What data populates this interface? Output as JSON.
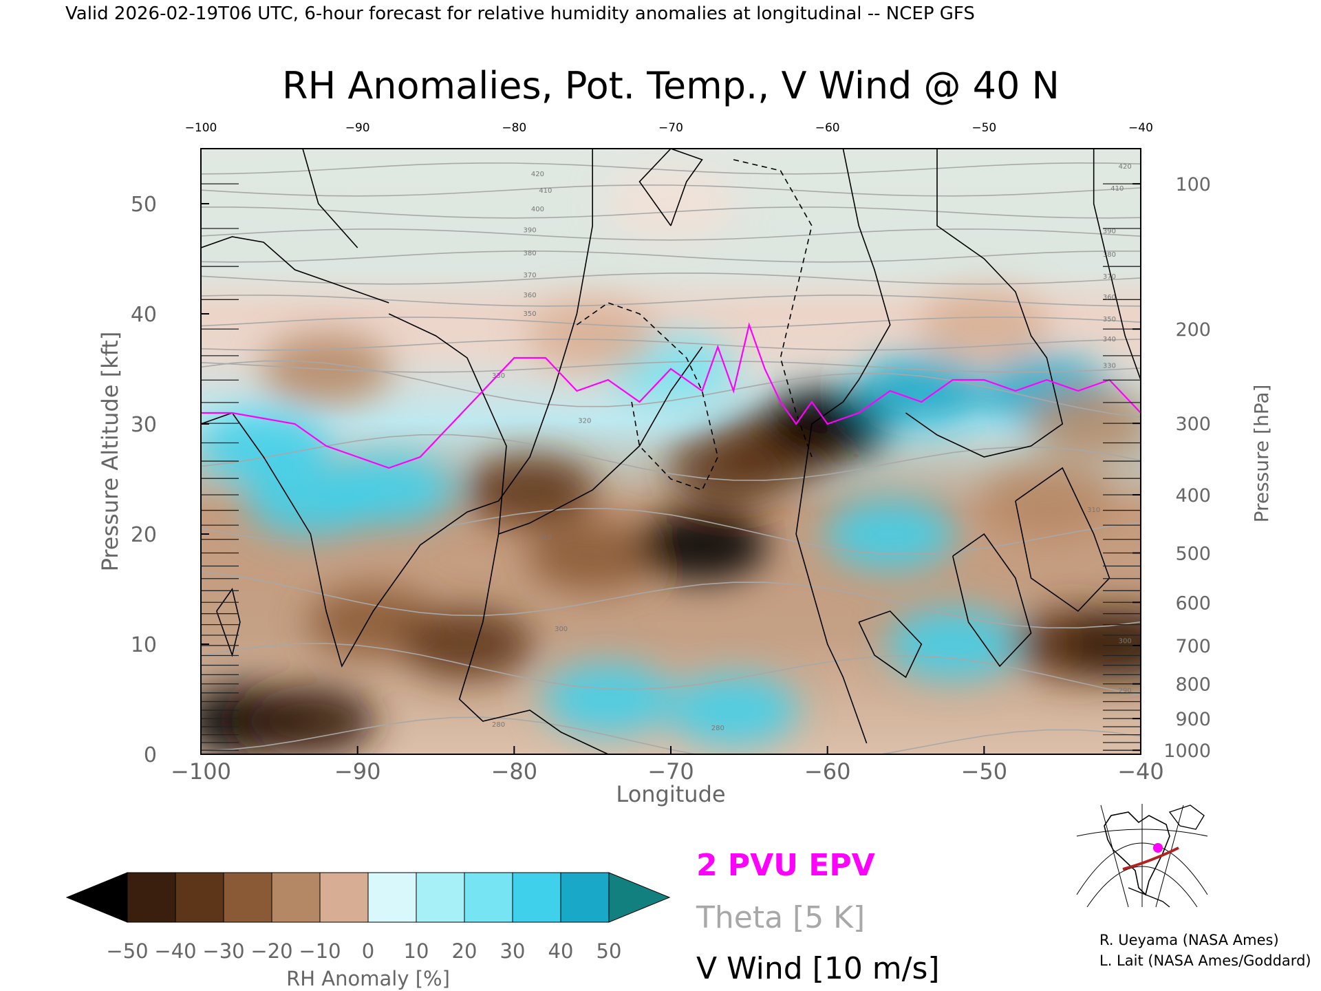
{
  "header": {
    "valid_line": "Valid 2026-02-19T06 UTC, 6-hour forecast for relative humidity anomalies at longitudinal -- NCEP GFS"
  },
  "chart_data": {
    "type": "heatmap",
    "title": "RH Anomalies, Pot. Temp., V Wind @ 40 N",
    "xlabel": "Longitude",
    "ylabel": "Pressure Altitude [kft]",
    "y2label": "Pressure [hPa]",
    "xlim": [
      -100,
      -40
    ],
    "ylim": [
      0,
      55
    ],
    "x_ticks": [
      -100,
      -90,
      -80,
      -70,
      -60,
      -50,
      -40
    ],
    "x_tick_labels": [
      "−100",
      "−90",
      "−80",
      "−70",
      "−60",
      "−50",
      "−40"
    ],
    "top_tick_labels": [
      "−100",
      "−90",
      "−80",
      "−70",
      "−60",
      "−50",
      "−40"
    ],
    "y_ticks": [
      0,
      10,
      20,
      30,
      40,
      50
    ],
    "y_tick_labels": [
      "0",
      "10",
      "20",
      "30",
      "40",
      "50"
    ],
    "pressure_ticks": [
      {
        "hpa": 100,
        "label": "100"
      },
      {
        "hpa": 200,
        "label": "200"
      },
      {
        "hpa": 300,
        "label": "300"
      },
      {
        "hpa": 400,
        "label": "400"
      },
      {
        "hpa": 500,
        "label": "500"
      },
      {
        "hpa": 600,
        "label": "600"
      },
      {
        "hpa": 700,
        "label": "700"
      },
      {
        "hpa": 800,
        "label": "800"
      },
      {
        "hpa": 900,
        "label": "900"
      },
      {
        "hpa": 1000,
        "label": "1000"
      }
    ],
    "rh_anomaly_field": [
      {
        "lon": -97,
        "alt": 3,
        "value": -55
      },
      {
        "lon": -93,
        "alt": 3,
        "value": -45
      },
      {
        "lon": -89,
        "alt": 12,
        "value": -25
      },
      {
        "lon": -93,
        "alt": 23,
        "value": 35
      },
      {
        "lon": -96,
        "alt": 28,
        "value": 30
      },
      {
        "lon": -88,
        "alt": 24,
        "value": 30
      },
      {
        "lon": -92,
        "alt": 35,
        "value": -20
      },
      {
        "lon": -83,
        "alt": 10,
        "value": -40
      },
      {
        "lon": -79,
        "alt": 24,
        "value": -35
      },
      {
        "lon": -75,
        "alt": 18,
        "value": -25
      },
      {
        "lon": -68,
        "alt": 19,
        "value": -55
      },
      {
        "lon": -66,
        "alt": 26,
        "value": -40
      },
      {
        "lon": -63,
        "alt": 28,
        "value": -35
      },
      {
        "lon": -60,
        "alt": 30,
        "value": -55
      },
      {
        "lon": -74,
        "alt": 5,
        "value": 30
      },
      {
        "lon": -66,
        "alt": 4,
        "value": 35
      },
      {
        "lon": -70,
        "alt": 35,
        "value": 20
      },
      {
        "lon": -56,
        "alt": 20,
        "value": 35
      },
      {
        "lon": -52,
        "alt": 10,
        "value": 35
      },
      {
        "lon": -54,
        "alt": 33,
        "value": 45
      },
      {
        "lon": -46,
        "alt": 33,
        "value": 45
      },
      {
        "lon": -46,
        "alt": 23,
        "value": -20
      },
      {
        "lon": -44,
        "alt": 10,
        "value": -35
      },
      {
        "lon": -41,
        "alt": 10,
        "value": -50
      },
      {
        "lon": -43,
        "alt": 30,
        "value": -15
      },
      {
        "lon": -75,
        "alt": 38,
        "value": -10
      },
      {
        "lon": -50,
        "alt": 39,
        "value": -10
      },
      {
        "lon": -70,
        "alt": 50,
        "value": 0
      }
    ],
    "theta_levels": [
      280,
      290,
      300,
      310,
      320,
      330,
      340,
      350,
      360,
      370,
      380,
      390,
      400,
      410,
      420,
      430
    ],
    "theta_labels": [
      {
        "text": "280",
        "lon": -81,
        "alt": 2.5
      },
      {
        "text": "280",
        "lon": -67,
        "alt": 2.2
      },
      {
        "text": "290",
        "lon": -41,
        "alt": 5.6
      },
      {
        "text": "300",
        "lon": -77,
        "alt": 11.2
      },
      {
        "text": "300",
        "lon": -41,
        "alt": 10.1
      },
      {
        "text": "310",
        "lon": -78,
        "alt": 19.5
      },
      {
        "text": "310",
        "lon": -43,
        "alt": 22.0
      },
      {
        "text": "320",
        "lon": -75.5,
        "alt": 30.1
      },
      {
        "text": "330",
        "lon": -81,
        "alt": 34.2
      },
      {
        "text": "330",
        "lon": -42,
        "alt": 35.1
      },
      {
        "text": "340",
        "lon": -42,
        "alt": 37.5
      },
      {
        "text": "350",
        "lon": -79,
        "alt": 39.8
      },
      {
        "text": "350",
        "lon": -42,
        "alt": 39.3
      },
      {
        "text": "360",
        "lon": -79,
        "alt": 41.5
      },
      {
        "text": "360",
        "lon": -42,
        "alt": 41.3
      },
      {
        "text": "370",
        "lon": -79,
        "alt": 43.3
      },
      {
        "text": "370",
        "lon": -42,
        "alt": 43.2
      },
      {
        "text": "380",
        "lon": -79,
        "alt": 45.3
      },
      {
        "text": "380",
        "lon": -42,
        "alt": 45.2
      },
      {
        "text": "390",
        "lon": -79,
        "alt": 47.4
      },
      {
        "text": "390",
        "lon": -42,
        "alt": 47.3
      },
      {
        "text": "400",
        "lon": -78.5,
        "alt": 49.3
      },
      {
        "text": "410",
        "lon": -78,
        "alt": 51.0
      },
      {
        "text": "410",
        "lon": -41.5,
        "alt": 51.2
      },
      {
        "text": "420",
        "lon": -78.5,
        "alt": 52.5
      },
      {
        "text": "420",
        "lon": -41,
        "alt": 53.2
      }
    ],
    "v_wind_contours": [
      {
        "level": 10,
        "dashed": false,
        "points": [
          [
            -100,
            46
          ],
          [
            -98,
            47
          ],
          [
            -96,
            46.5
          ],
          [
            -94,
            44
          ],
          [
            -92,
            43
          ],
          [
            -90,
            42
          ],
          [
            -88,
            41
          ]
        ]
      },
      {
        "level": 10,
        "dashed": false,
        "points": [
          [
            -93.5,
            55
          ],
          [
            -92.5,
            50
          ],
          [
            -90,
            46
          ]
        ]
      },
      {
        "level": 0,
        "dashed": false,
        "points": [
          [
            -100,
            30
          ],
          [
            -98,
            31
          ],
          [
            -96,
            27
          ],
          [
            -93,
            20
          ],
          [
            -92,
            13
          ],
          [
            -91,
            8
          ],
          [
            -89,
            13
          ],
          [
            -86,
            19
          ],
          [
            -83,
            22
          ],
          [
            -81,
            23
          ],
          [
            -79,
            27
          ],
          [
            -77.5,
            33
          ],
          [
            -76,
            40
          ],
          [
            -75,
            48
          ],
          [
            -75,
            55
          ]
        ]
      },
      {
        "level": 10,
        "dashed": false,
        "points": [
          [
            -99,
            13
          ],
          [
            -98,
            15
          ],
          [
            -97.5,
            12
          ],
          [
            -98,
            9
          ],
          [
            -99,
            13
          ]
        ]
      },
      {
        "level": 0,
        "dashed": false,
        "points": [
          [
            -88,
            40
          ],
          [
            -85,
            38
          ],
          [
            -83,
            36
          ],
          [
            -80.5,
            28
          ],
          [
            -81,
            20
          ],
          [
            -82,
            12
          ],
          [
            -83.5,
            5
          ],
          [
            -82,
            3
          ],
          [
            -79,
            4
          ],
          [
            -77,
            2
          ],
          [
            -74,
            0
          ]
        ]
      },
      {
        "level": 10,
        "dashed": false,
        "points": [
          [
            -81,
            20
          ],
          [
            -79,
            21
          ],
          [
            -75,
            24
          ],
          [
            -72,
            28
          ],
          [
            -70,
            33
          ],
          [
            -68,
            37
          ]
        ]
      },
      {
        "level": 0,
        "dashed": false,
        "points": [
          [
            -70,
            48
          ],
          [
            -69,
            52
          ],
          [
            -68,
            54
          ],
          [
            -70,
            55
          ],
          [
            -72,
            52
          ],
          [
            -70,
            48
          ]
        ]
      },
      {
        "level": -10,
        "dashed": true,
        "points": [
          [
            -76,
            39
          ],
          [
            -74,
            41
          ],
          [
            -72,
            40
          ],
          [
            -69,
            36
          ],
          [
            -68,
            33
          ],
          [
            -67,
            27
          ],
          [
            -68,
            24
          ],
          [
            -70,
            25
          ],
          [
            -72,
            28
          ],
          [
            -72.5,
            32
          ]
        ]
      },
      {
        "level": -10,
        "dashed": true,
        "points": [
          [
            -66,
            54
          ],
          [
            -63,
            53
          ],
          [
            -61,
            48
          ],
          [
            -62,
            42
          ],
          [
            -63,
            36
          ],
          [
            -62,
            31
          ],
          [
            -61,
            27
          ]
        ]
      },
      {
        "level": 0,
        "dashed": false,
        "points": [
          [
            -59,
            55
          ],
          [
            -58,
            48
          ],
          [
            -57,
            44
          ],
          [
            -56,
            39
          ],
          [
            -58,
            34
          ],
          [
            -59,
            32
          ],
          [
            -61,
            30
          ],
          [
            -62,
            20
          ],
          [
            -61,
            15
          ],
          [
            -60,
            10
          ],
          [
            -59,
            7
          ],
          [
            -58,
            3
          ],
          [
            -57.5,
            1
          ]
        ]
      },
      {
        "level": 0,
        "dashed": false,
        "points": [
          [
            -53,
            55
          ],
          [
            -53,
            48
          ],
          [
            -50,
            45
          ],
          [
            -48,
            42
          ],
          [
            -47,
            38
          ],
          [
            -46,
            36
          ],
          [
            -45,
            30
          ],
          [
            -47,
            28
          ],
          [
            -50,
            27
          ],
          [
            -53,
            29
          ],
          [
            -55,
            31
          ]
        ]
      },
      {
        "level": 0,
        "dashed": false,
        "points": [
          [
            -43,
            55
          ],
          [
            -43,
            50
          ],
          [
            -42,
            44
          ],
          [
            -41,
            38
          ],
          [
            -40,
            34
          ]
        ]
      },
      {
        "level": 10,
        "dashed": false,
        "points": [
          [
            -52,
            18
          ],
          [
            -51,
            12
          ],
          [
            -49,
            8
          ],
          [
            -47,
            11
          ],
          [
            -48,
            16
          ],
          [
            -50,
            20
          ],
          [
            -52,
            18
          ]
        ]
      },
      {
        "level": 0,
        "dashed": false,
        "points": [
          [
            -58,
            12
          ],
          [
            -57,
            9
          ],
          [
            -55,
            7
          ],
          [
            -54,
            10
          ],
          [
            -56,
            13
          ],
          [
            -58,
            12
          ]
        ]
      },
      {
        "level": 0,
        "dashed": false,
        "points": [
          [
            -48,
            23
          ],
          [
            -45,
            26
          ],
          [
            -43,
            20
          ],
          [
            -42,
            16
          ],
          [
            -44,
            13
          ],
          [
            -47,
            16
          ],
          [
            -48,
            23
          ]
        ]
      }
    ],
    "epv_2pvu_line": [
      [
        -100,
        31
      ],
      [
        -98,
        31
      ],
      [
        -96,
        30.5
      ],
      [
        -94,
        30
      ],
      [
        -92,
        28
      ],
      [
        -90,
        27
      ],
      [
        -88,
        26
      ],
      [
        -86,
        27
      ],
      [
        -84,
        30
      ],
      [
        -82,
        33
      ],
      [
        -80,
        36
      ],
      [
        -78,
        36
      ],
      [
        -76,
        33
      ],
      [
        -74,
        34
      ],
      [
        -72,
        32
      ],
      [
        -70,
        35
      ],
      [
        -68,
        33
      ],
      [
        -67,
        37
      ],
      [
        -66,
        33
      ],
      [
        -65,
        39
      ],
      [
        -64,
        35
      ],
      [
        -63,
        32
      ],
      [
        -62,
        30
      ],
      [
        -61,
        32
      ],
      [
        -60,
        30
      ],
      [
        -58,
        31
      ],
      [
        -56,
        33
      ],
      [
        -54,
        32
      ],
      [
        -52,
        34
      ],
      [
        -50,
        34
      ],
      [
        -48,
        33
      ],
      [
        -46,
        34
      ],
      [
        -44,
        33
      ],
      [
        -42,
        34
      ],
      [
        -40,
        31
      ]
    ],
    "colorbar": {
      "label": "RH Anomaly [%]",
      "ticks": [
        "−50",
        "−40",
        "−30",
        "−20",
        "−10",
        "0",
        "10",
        "20",
        "30",
        "40",
        "50"
      ],
      "colors": [
        "#3a1f0f",
        "#5d3518",
        "#8a5a36",
        "#b58865",
        "#d7ae93",
        "#f2e0d6",
        "#d8f8fb",
        "#a7f0f8",
        "#76e4f3",
        "#3fd0ec",
        "#1aa8c8"
      ],
      "under_color": "#000000",
      "over_color": "#138080"
    },
    "legend": {
      "epv": "2 PVU EPV",
      "theta": "Theta [5 K]",
      "vwind": "V Wind [10 m/s]"
    },
    "colors": {
      "epv": "#ff00ff",
      "theta": "#a8a8a8",
      "vwind": "#000000"
    }
  },
  "credits": {
    "line1": "R. Ueyama (NASA Ames)",
    "line2": "L. Lait (NASA Ames/Goddard)"
  },
  "inset_map": {
    "icon": "north-america-locator-map-icon"
  }
}
